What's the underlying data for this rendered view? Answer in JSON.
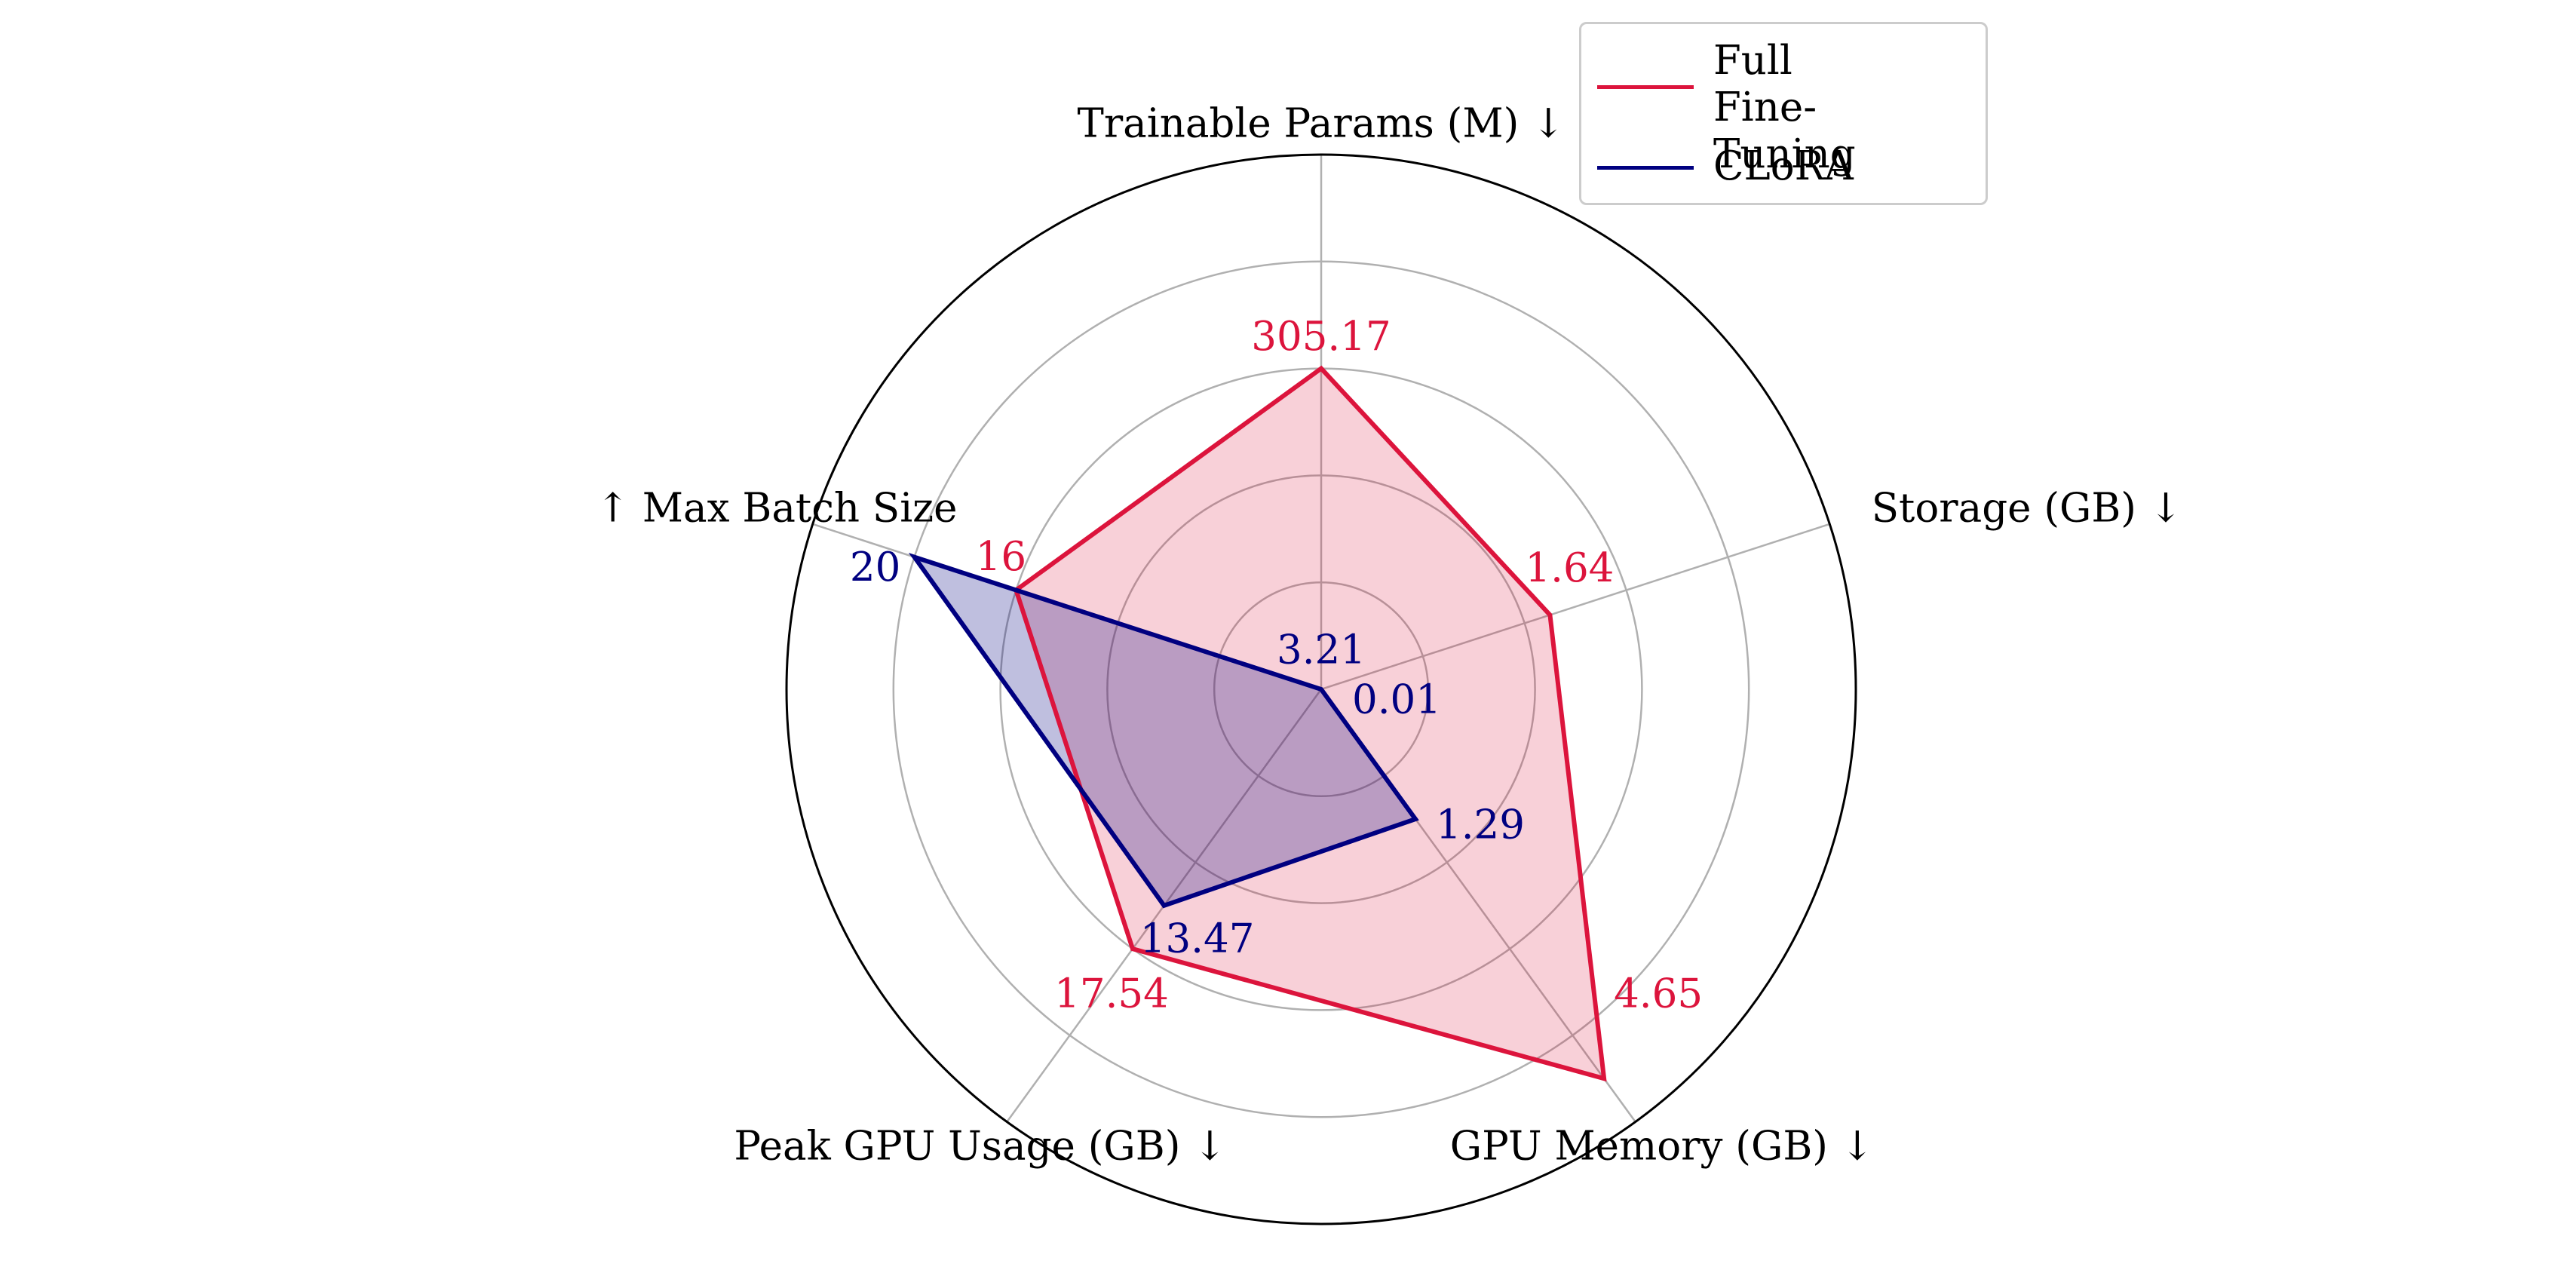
{
  "chart_data": {
    "type": "radar",
    "title": "",
    "axes": [
      {
        "label": "Trainable Params (M) ↓"
      },
      {
        "label": "Storage (GB) ↓"
      },
      {
        "label": "GPU Memory (GB) ↓"
      },
      {
        "label": "Peak GPU Usage (GB) ↓"
      },
      {
        "label": "↑ Max Batch Size"
      }
    ],
    "series": [
      {
        "name": "Full\nFine-Tuning",
        "color": "#dc143c",
        "fill": "#dc143c",
        "fill_opacity": 0.2,
        "values": [
          "305.17",
          "1.64",
          "4.65",
          "17.54",
          "16"
        ],
        "normalized": [
          0.6,
          0.45,
          0.9,
          0.6,
          0.6
        ]
      },
      {
        "name": "CLoRA",
        "color": "#000080",
        "fill": "#000080",
        "fill_opacity": 0.25,
        "values": [
          "3.21",
          "0.01",
          "1.29",
          "13.47",
          "20"
        ],
        "normalized": [
          0.0,
          0.0,
          0.3,
          0.5,
          0.8
        ]
      }
    ],
    "grid": true,
    "grid_levels": [
      0.2,
      0.4,
      0.6,
      0.8
    ],
    "rlim": [
      0,
      1
    ],
    "legend_position": "top-right"
  }
}
